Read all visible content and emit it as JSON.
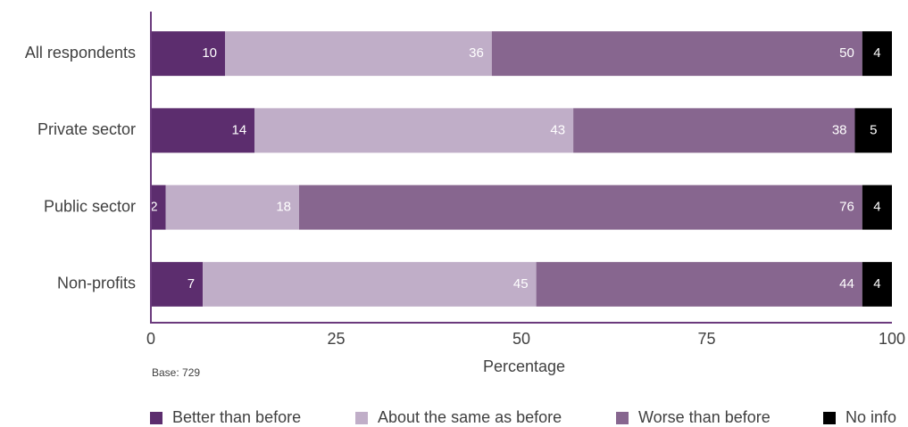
{
  "chart_data": {
    "type": "bar",
    "orientation": "horizontal",
    "stacked": true,
    "categories": [
      "All respondents",
      "Private sector",
      "Public sector",
      "Non-profits"
    ],
    "series": [
      {
        "name": "Better than before",
        "color": "#5c2d6e",
        "values": [
          10,
          14,
          2,
          7
        ]
      },
      {
        "name": "About the same as before",
        "color": "#c0aec8",
        "values": [
          36,
          43,
          18,
          45
        ]
      },
      {
        "name": "Worse than before",
        "color": "#87668f",
        "values": [
          50,
          38,
          76,
          44
        ]
      },
      {
        "name": "No info",
        "color": "#000000",
        "values": [
          4,
          5,
          4,
          4
        ]
      }
    ],
    "xlim": [
      0,
      100
    ],
    "xticks": [
      0,
      25,
      50,
      75,
      100
    ],
    "x_label": "Percentage",
    "note": "Base: 729",
    "legend": "bottom"
  }
}
